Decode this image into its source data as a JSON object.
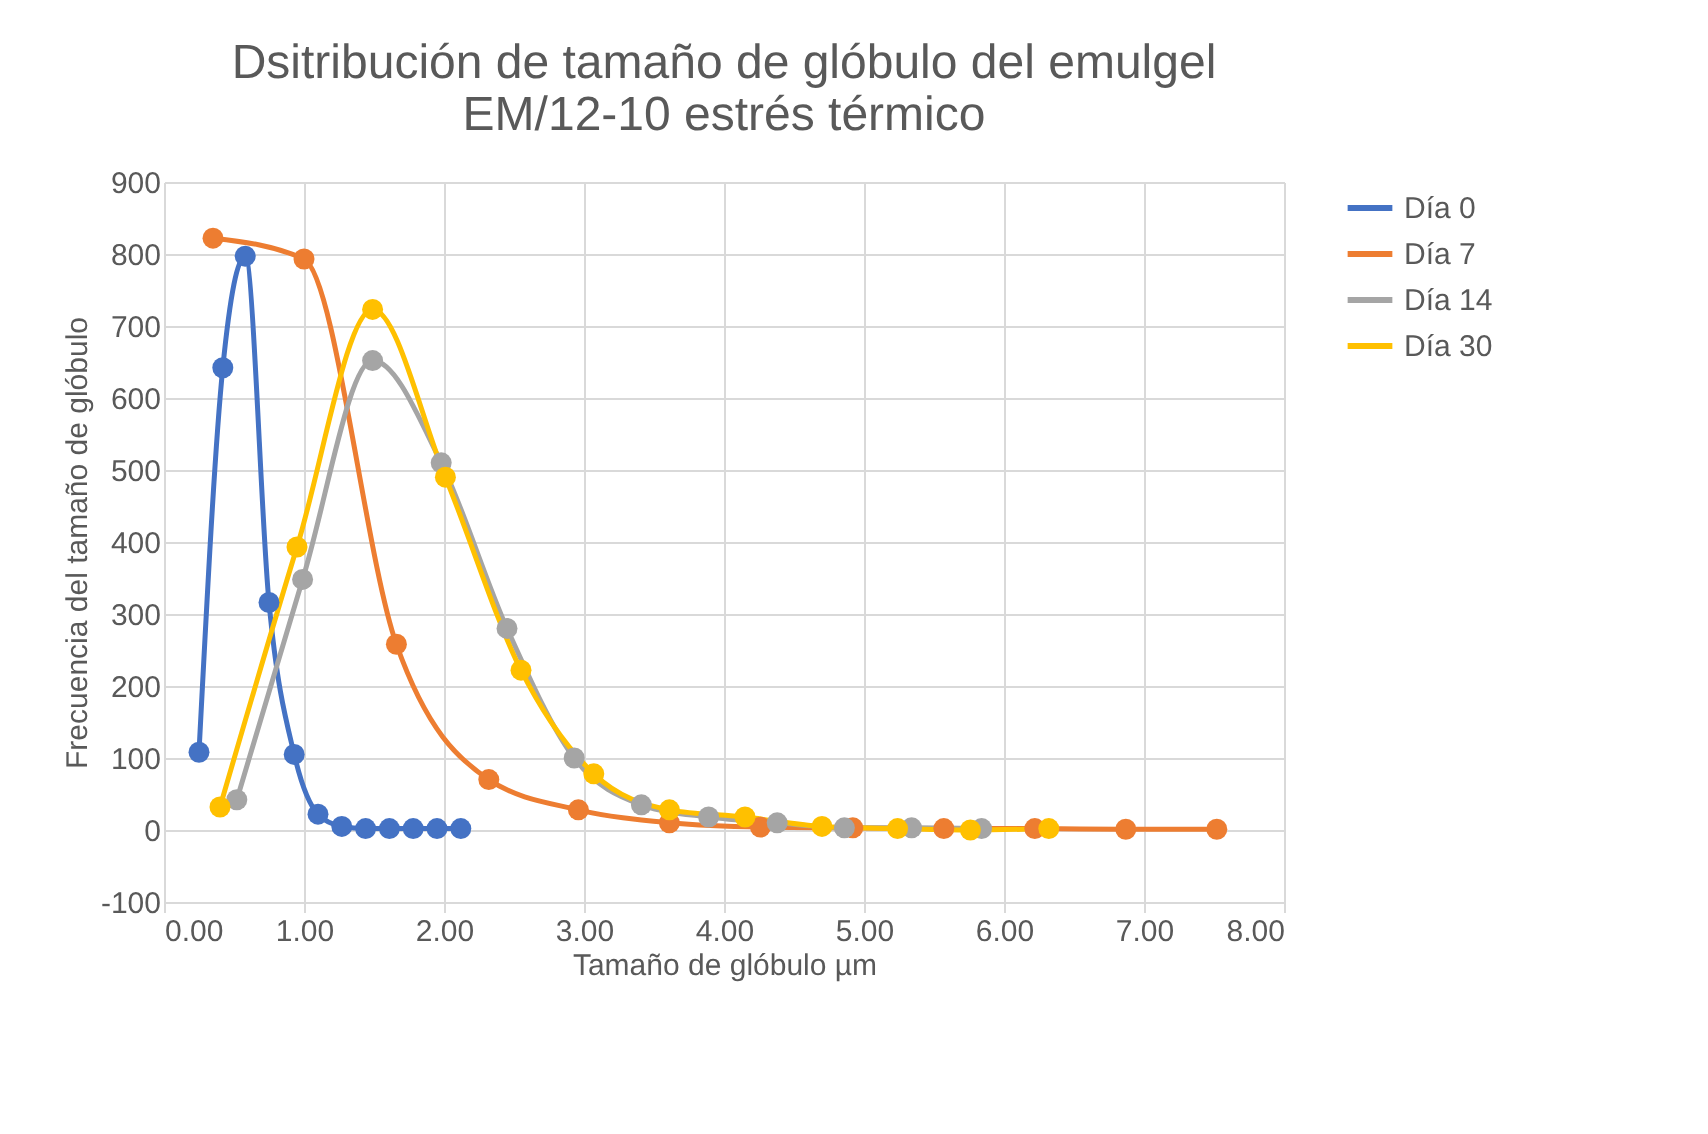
{
  "chart_data": {
    "type": "line",
    "title": [
      "Dsitribución de tamaño de glóbulo  del emulgel",
      "EM/12-10 estrés térmico"
    ],
    "xlabel": "Tamaño de glóbulo µm",
    "ylabel": "Frecuencia del tamaño de glóbulo",
    "xlim": [
      0,
      8
    ],
    "xticks": [
      {
        "value": 0,
        "label": "0.00"
      },
      {
        "value": 1,
        "label": "1.00"
      },
      {
        "value": 2,
        "label": "2.00"
      },
      {
        "value": 3,
        "label": "3.00"
      },
      {
        "value": 4,
        "label": "4.00"
      },
      {
        "value": 5,
        "label": "5.00"
      },
      {
        "value": 6,
        "label": "6.00"
      },
      {
        "value": 7,
        "label": "7.00"
      },
      {
        "value": 8,
        "label": "8.00"
      }
    ],
    "ylim": [
      -100,
      900
    ],
    "yticks": [
      -100,
      0,
      100,
      200,
      300,
      400,
      500,
      600,
      700,
      800,
      900
    ],
    "grid": true,
    "legend": "right",
    "marker": "circle",
    "line_style": "solid",
    "series": [
      {
        "name": "Día 0",
        "color": "#4472c4",
        "x": [
          0.25,
          0.42,
          0.58,
          0.75,
          0.93,
          1.1,
          1.27,
          1.44,
          1.61,
          1.78,
          1.95,
          2.12
        ],
        "values": [
          108,
          642,
          797,
          316,
          105,
          22,
          5,
          2,
          2,
          2,
          2,
          2
        ]
      },
      {
        "name": "Día 7",
        "color": "#ed7d31",
        "x": [
          0.35,
          1.0,
          1.66,
          2.32,
          2.96,
          3.61,
          4.26,
          4.92,
          5.57,
          6.22,
          6.87,
          7.52
        ],
        "values": [
          822,
          793,
          258,
          70,
          28,
          10,
          4,
          3,
          2,
          2,
          1,
          1
        ]
      },
      {
        "name": "Día 14",
        "color": "#a5a5a5",
        "x": [
          0.52,
          0.99,
          1.49,
          1.98,
          2.45,
          2.93,
          3.41,
          3.89,
          4.38,
          4.86,
          5.34,
          5.84
        ],
        "values": [
          42,
          348,
          652,
          510,
          280,
          100,
          35,
          18,
          10,
          3,
          3,
          2
        ]
      },
      {
        "name": "Día 30",
        "color": "#ffc000",
        "x": [
          0.4,
          0.95,
          1.49,
          2.01,
          2.55,
          3.07,
          3.61,
          4.15,
          4.7,
          5.24,
          5.76,
          6.32
        ],
        "values": [
          32,
          393,
          723,
          490,
          222,
          78,
          28,
          18,
          5,
          2,
          0,
          2
        ]
      }
    ]
  }
}
